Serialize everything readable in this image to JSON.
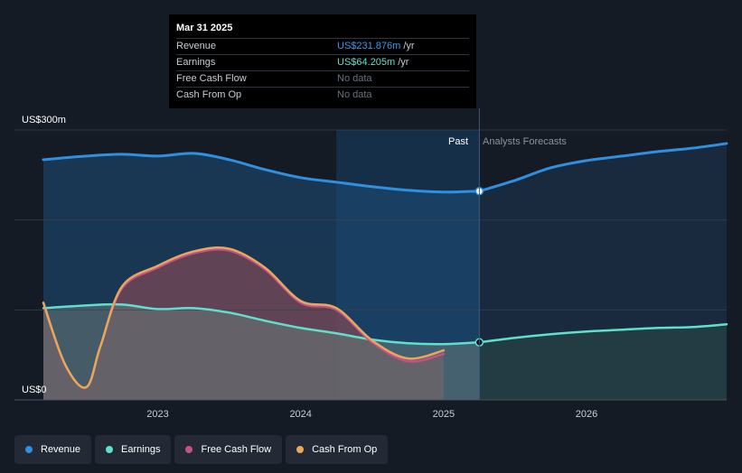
{
  "tooltip": {
    "date": "Mar 31 2025",
    "rows": [
      {
        "label": "Revenue",
        "value": "US$231.876m",
        "unit": "/yr",
        "color": "#3b9be8"
      },
      {
        "label": "Earnings",
        "value": "US$64.205m",
        "unit": "/yr",
        "color": "#5fe0cc"
      },
      {
        "label": "Free Cash Flow",
        "value": "No data",
        "unit": "",
        "color": "#6b7280"
      },
      {
        "label": "Cash From Op",
        "value": "No data",
        "unit": "",
        "color": "#6b7280"
      }
    ]
  },
  "regions": {
    "past_label": "Past",
    "forecast_label": "Analysts Forecasts"
  },
  "legend": [
    {
      "label": "Revenue",
      "color": "#2f8fe0"
    },
    {
      "label": "Earnings",
      "color": "#5fe0cc"
    },
    {
      "label": "Free Cash Flow",
      "color": "#c8508a"
    },
    {
      "label": "Cash From Op",
      "color": "#e8a85a"
    }
  ],
  "chart_data": {
    "type": "line",
    "title": "",
    "xlabel": "",
    "ylabel": "",
    "y_unit": "US$ m",
    "ylim": [
      0,
      300
    ],
    "xlim": [
      2022.2,
      2026.98
    ],
    "y_tick_labels": [
      {
        "value": 300,
        "label": "US$300m"
      },
      {
        "value": 0,
        "label": "US$0"
      }
    ],
    "x_ticks": [
      {
        "value": 2023.0,
        "label": "2023"
      },
      {
        "value": 2024.0,
        "label": "2024"
      },
      {
        "value": 2025.0,
        "label": "2025"
      },
      {
        "value": 2026.0,
        "label": "2026"
      }
    ],
    "past_shade_start": 2024.25,
    "divider_x": 2025.25,
    "series": [
      {
        "name": "Revenue",
        "color": "#2f8fe0",
        "x": [
          2022.2,
          2022.5,
          2022.75,
          2023.0,
          2023.25,
          2023.5,
          2023.75,
          2024.0,
          2024.25,
          2024.5,
          2024.75,
          2025.0,
          2025.25
        ],
        "values": [
          267,
          271,
          273,
          271,
          274,
          267,
          256,
          247,
          242,
          237,
          233,
          231,
          232
        ]
      },
      {
        "name": "Revenue forecast",
        "color": "#2f8fe0",
        "x": [
          2025.25,
          2025.5,
          2025.75,
          2026.0,
          2026.25,
          2026.5,
          2026.75,
          2026.98
        ],
        "values": [
          232,
          244,
          258,
          266,
          271,
          276,
          280,
          285
        ]
      },
      {
        "name": "Earnings",
        "color": "#5fe0cc",
        "x": [
          2022.2,
          2022.5,
          2022.75,
          2023.0,
          2023.25,
          2023.5,
          2023.75,
          2024.0,
          2024.25,
          2024.5,
          2024.75,
          2025.0,
          2025.25
        ],
        "values": [
          102,
          105,
          106,
          101,
          102,
          97,
          88,
          80,
          74,
          67,
          63,
          62,
          64
        ]
      },
      {
        "name": "Earnings forecast",
        "color": "#5fe0cc",
        "x": [
          2025.25,
          2025.5,
          2025.75,
          2026.0,
          2026.25,
          2026.5,
          2026.75,
          2026.98
        ],
        "values": [
          64,
          69,
          73,
          76,
          78,
          80,
          81,
          84
        ]
      },
      {
        "name": "Free Cash Flow",
        "color": "#c8508a",
        "x": [
          2022.2,
          2022.35,
          2022.5,
          2022.6,
          2022.75,
          2023.0,
          2023.25,
          2023.5,
          2023.75,
          2024.0,
          2024.25,
          2024.5,
          2024.75,
          2025.0
        ],
        "values": [
          108,
          40,
          14,
          60,
          124,
          147,
          163,
          166,
          145,
          108,
          100,
          64,
          43,
          51
        ]
      },
      {
        "name": "Cash From Op",
        "color": "#e8a85a",
        "x": [
          2022.2,
          2022.35,
          2022.5,
          2022.6,
          2022.75,
          2023.0,
          2023.25,
          2023.5,
          2023.75,
          2024.0,
          2024.25,
          2024.5,
          2024.75,
          2025.0
        ],
        "values": [
          108,
          40,
          14,
          60,
          126,
          149,
          165,
          168,
          147,
          110,
          102,
          66,
          46,
          55
        ]
      }
    ],
    "markers": [
      {
        "series": "Revenue",
        "x": 2025.25,
        "value": 232
      },
      {
        "series": "Earnings",
        "x": 2025.25,
        "value": 64
      }
    ]
  }
}
